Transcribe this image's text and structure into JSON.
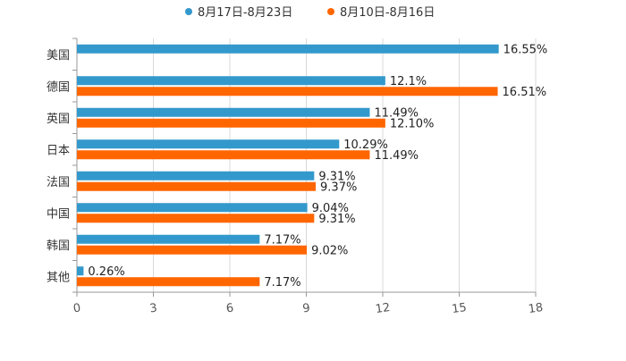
{
  "chart_data": {
    "type": "bar",
    "orientation": "horizontal",
    "categories": [
      "美国",
      "德国",
      "英国",
      "日本",
      "法国",
      "中国",
      "韩国",
      "其他"
    ],
    "series": [
      {
        "name": "8月17日-8月23日",
        "color": "#3399cc",
        "values": [
          16.55,
          12.1,
          11.49,
          10.29,
          9.31,
          9.04,
          7.17,
          0.26
        ],
        "labels": [
          "16.55%",
          "12.1%",
          "11.49%",
          "10.29%",
          "9.31%",
          "9.04%",
          "7.17%",
          "0.26%"
        ]
      },
      {
        "name": "8月10日-8月16日",
        "color": "#ff6600",
        "values": [
          null,
          16.51,
          12.1,
          11.49,
          9.37,
          9.31,
          9.02,
          7.17
        ],
        "labels": [
          "",
          "16.51%",
          "12.10%",
          "11.49%",
          "9.37%",
          "9.31%",
          "9.02%",
          "7.17%"
        ]
      }
    ],
    "xlim": [
      0,
      18
    ],
    "xticks": [
      0,
      3,
      6,
      9,
      12,
      15,
      18
    ],
    "xtick_labels": [
      "0",
      "3",
      "6",
      "9",
      "12",
      "15",
      "18"
    ],
    "grid": true,
    "legend_position": "top-center",
    "title": "",
    "xlabel": "",
    "ylabel": ""
  }
}
